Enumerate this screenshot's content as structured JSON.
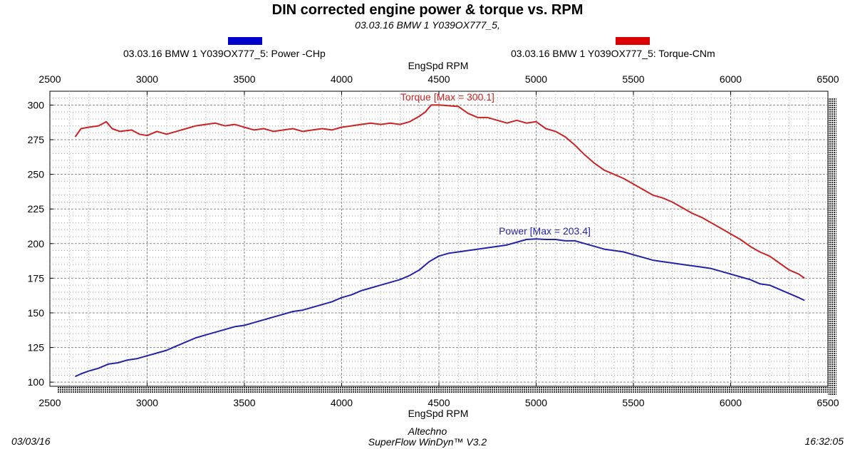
{
  "header": {
    "title": "DIN corrected engine power & torque vs. RPM",
    "subtitle": "03.03.16  BMW 1 Y039OX777_5,"
  },
  "legend": [
    {
      "label": "03.03.16  BMW 1 Y039OX777_5: Power -CHp",
      "color": "#0000cc"
    },
    {
      "label": "03.03.16  BMW 1 Y039OX777_5: Torque-CNm",
      "color": "#dd0000"
    }
  ],
  "footer": {
    "date": "03/03/16",
    "company": "Altechno",
    "software": "SuperFlow WinDyn™ V3.2",
    "time": "16:32:05"
  },
  "chart_data": {
    "type": "line",
    "xlabel_top": "EngSpd RPM",
    "xlabel": "EngSpd RPM",
    "ylabel": "",
    "xlim": [
      2500,
      6500
    ],
    "ylim": [
      97,
      310
    ],
    "x_ticks": [
      2500,
      3000,
      3500,
      4000,
      4500,
      5000,
      5500,
      6000,
      6500
    ],
    "y_ticks": [
      100,
      125,
      150,
      175,
      200,
      225,
      250,
      275,
      300
    ],
    "grid": true,
    "series": [
      {
        "name": "Torque",
        "color": "#cc2222",
        "annotation": "Torque [Max = 300.1]",
        "points": [
          [
            2630,
            277
          ],
          [
            2660,
            283
          ],
          [
            2700,
            284
          ],
          [
            2750,
            285
          ],
          [
            2790,
            288
          ],
          [
            2820,
            283
          ],
          [
            2860,
            281
          ],
          [
            2920,
            282
          ],
          [
            2960,
            279
          ],
          [
            3000,
            278
          ],
          [
            3050,
            281
          ],
          [
            3100,
            279
          ],
          [
            3150,
            281
          ],
          [
            3200,
            283
          ],
          [
            3250,
            285
          ],
          [
            3300,
            286
          ],
          [
            3350,
            287
          ],
          [
            3400,
            285
          ],
          [
            3450,
            286
          ],
          [
            3500,
            284
          ],
          [
            3550,
            282
          ],
          [
            3600,
            283
          ],
          [
            3650,
            281
          ],
          [
            3700,
            282
          ],
          [
            3750,
            283
          ],
          [
            3800,
            281
          ],
          [
            3850,
            282
          ],
          [
            3900,
            283
          ],
          [
            3950,
            282
          ],
          [
            4000,
            284
          ],
          [
            4050,
            285
          ],
          [
            4100,
            286
          ],
          [
            4150,
            287
          ],
          [
            4200,
            286
          ],
          [
            4250,
            287
          ],
          [
            4300,
            286
          ],
          [
            4350,
            288
          ],
          [
            4400,
            292
          ],
          [
            4430,
            295
          ],
          [
            4460,
            300
          ],
          [
            4500,
            300.1
          ],
          [
            4550,
            299.5
          ],
          [
            4600,
            299
          ],
          [
            4650,
            294
          ],
          [
            4700,
            291
          ],
          [
            4750,
            291
          ],
          [
            4800,
            289
          ],
          [
            4850,
            287
          ],
          [
            4900,
            289
          ],
          [
            4950,
            287
          ],
          [
            5000,
            288
          ],
          [
            5050,
            283
          ],
          [
            5100,
            281
          ],
          [
            5150,
            277
          ],
          [
            5200,
            271
          ],
          [
            5250,
            264
          ],
          [
            5300,
            258
          ],
          [
            5350,
            253
          ],
          [
            5400,
            250
          ],
          [
            5450,
            247
          ],
          [
            5500,
            243
          ],
          [
            5550,
            239
          ],
          [
            5600,
            235
          ],
          [
            5650,
            233
          ],
          [
            5700,
            230
          ],
          [
            5750,
            226
          ],
          [
            5800,
            222
          ],
          [
            5850,
            219
          ],
          [
            5900,
            215
          ],
          [
            5950,
            211
          ],
          [
            6000,
            207
          ],
          [
            6050,
            203
          ],
          [
            6100,
            198
          ],
          [
            6150,
            194
          ],
          [
            6200,
            191
          ],
          [
            6250,
            186
          ],
          [
            6300,
            181
          ],
          [
            6350,
            178
          ],
          [
            6380,
            175
          ]
        ]
      },
      {
        "name": "Power",
        "color": "#2222aa",
        "annotation": "Power  [Max = 203.4]",
        "points": [
          [
            2630,
            104
          ],
          [
            2660,
            106
          ],
          [
            2700,
            108
          ],
          [
            2750,
            110
          ],
          [
            2800,
            113
          ],
          [
            2850,
            114
          ],
          [
            2900,
            116
          ],
          [
            2950,
            117
          ],
          [
            3000,
            119
          ],
          [
            3050,
            121
          ],
          [
            3100,
            123
          ],
          [
            3150,
            126
          ],
          [
            3200,
            129
          ],
          [
            3250,
            132
          ],
          [
            3300,
            134
          ],
          [
            3350,
            136
          ],
          [
            3400,
            138
          ],
          [
            3450,
            140
          ],
          [
            3500,
            141
          ],
          [
            3550,
            143
          ],
          [
            3600,
            145
          ],
          [
            3650,
            147
          ],
          [
            3700,
            149
          ],
          [
            3750,
            151
          ],
          [
            3800,
            152
          ],
          [
            3850,
            154
          ],
          [
            3900,
            156
          ],
          [
            3950,
            158
          ],
          [
            4000,
            161
          ],
          [
            4050,
            163
          ],
          [
            4100,
            166
          ],
          [
            4150,
            168
          ],
          [
            4200,
            170
          ],
          [
            4250,
            172
          ],
          [
            4300,
            174
          ],
          [
            4350,
            177
          ],
          [
            4400,
            181
          ],
          [
            4450,
            187
          ],
          [
            4500,
            191
          ],
          [
            4550,
            193
          ],
          [
            4600,
            194
          ],
          [
            4650,
            195
          ],
          [
            4700,
            196
          ],
          [
            4750,
            197
          ],
          [
            4800,
            198
          ],
          [
            4850,
            199
          ],
          [
            4900,
            201
          ],
          [
            4950,
            203
          ],
          [
            5000,
            203.4
          ],
          [
            5050,
            203
          ],
          [
            5100,
            203
          ],
          [
            5150,
            202
          ],
          [
            5200,
            202
          ],
          [
            5250,
            200
          ],
          [
            5300,
            198
          ],
          [
            5350,
            196
          ],
          [
            5400,
            195
          ],
          [
            5450,
            194
          ],
          [
            5500,
            192
          ],
          [
            5550,
            190
          ],
          [
            5600,
            188
          ],
          [
            5650,
            187
          ],
          [
            5700,
            186
          ],
          [
            5750,
            185
          ],
          [
            5800,
            184
          ],
          [
            5850,
            183
          ],
          [
            5900,
            182
          ],
          [
            5950,
            180
          ],
          [
            6000,
            178
          ],
          [
            6050,
            176
          ],
          [
            6100,
            174
          ],
          [
            6150,
            171
          ],
          [
            6200,
            170
          ],
          [
            6250,
            167
          ],
          [
            6300,
            164
          ],
          [
            6350,
            161
          ],
          [
            6380,
            159
          ]
        ]
      }
    ]
  }
}
